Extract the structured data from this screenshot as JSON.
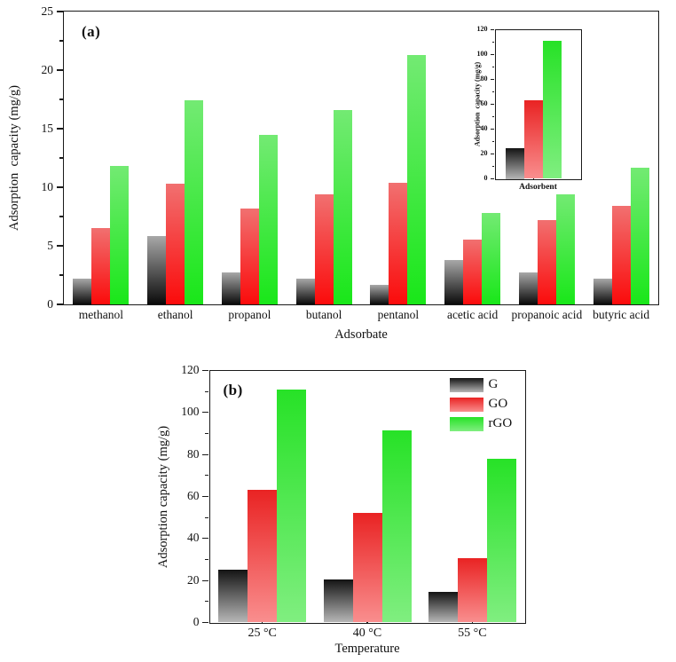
{
  "colors": {
    "axis": "#1a1a1a",
    "panel_a": {
      "G": [
        "#a8a8a8",
        "#0a0a0a"
      ],
      "GO": [
        "#f17070",
        "#fb0b0b"
      ],
      "rGO": [
        "#73ea73",
        "#19e719"
      ]
    },
    "panel_b": {
      "G": [
        "#141414",
        "#b6b6b6"
      ],
      "GO": [
        "#e92323",
        "#f98e8e"
      ],
      "rGO": [
        "#27e227",
        "#80ee80"
      ]
    }
  },
  "chart_data": [
    {
      "id": "panel_a",
      "type": "bar",
      "title": "(a)",
      "xlabel": "Adsorbate",
      "ylabel": "Adsorption  capacity (mg/g)",
      "ylim": [
        0,
        25
      ],
      "yticks": [
        0,
        5,
        10,
        15,
        20,
        25
      ],
      "minor_step": 2.5,
      "grid": false,
      "categories": [
        "methanol",
        "ethanol",
        "propanol",
        "butanol",
        "pentanol",
        "acetic acid",
        "propanoic acid",
        "butyric acid"
      ],
      "series": [
        {
          "name": "G",
          "values": [
            2.2,
            5.8,
            2.7,
            2.2,
            1.7,
            3.8,
            2.7,
            2.2
          ]
        },
        {
          "name": "GO",
          "values": [
            6.5,
            10.3,
            8.2,
            9.4,
            10.4,
            5.5,
            7.2,
            8.4
          ]
        },
        {
          "name": "rGO",
          "values": [
            11.8,
            17.4,
            14.5,
            16.6,
            21.3,
            7.8,
            9.4,
            11.7
          ]
        }
      ]
    },
    {
      "id": "inset",
      "type": "bar",
      "title": "",
      "xlabel": "Adsorbent",
      "ylabel": "Adsorption  capacity (mg/g)",
      "ylim": [
        0,
        120
      ],
      "yticks": [
        0,
        20,
        40,
        60,
        80,
        100,
        120
      ],
      "minor_step": 10,
      "grid": false,
      "categories": [
        ""
      ],
      "series": [
        {
          "name": "G",
          "values": [
            25
          ]
        },
        {
          "name": "GO",
          "values": [
            63
          ]
        },
        {
          "name": "rGO",
          "values": [
            111
          ]
        }
      ]
    },
    {
      "id": "panel_b",
      "type": "bar",
      "title": "(b)",
      "xlabel": "Temperature",
      "ylabel": "Adsorption capacity (mg/g)",
      "ylim": [
        0,
        120
      ],
      "yticks": [
        0,
        20,
        40,
        60,
        80,
        100,
        120
      ],
      "minor_step": 10,
      "grid": false,
      "legend_position": "top-right",
      "categories": [
        "25 °C",
        "40 °C",
        "55 °C"
      ],
      "series": [
        {
          "name": "G",
          "values": [
            25,
            20.5,
            14.5
          ]
        },
        {
          "name": "GO",
          "values": [
            63,
            52,
            30.5
          ]
        },
        {
          "name": "rGO",
          "values": [
            111,
            91.5,
            78
          ]
        }
      ]
    }
  ]
}
